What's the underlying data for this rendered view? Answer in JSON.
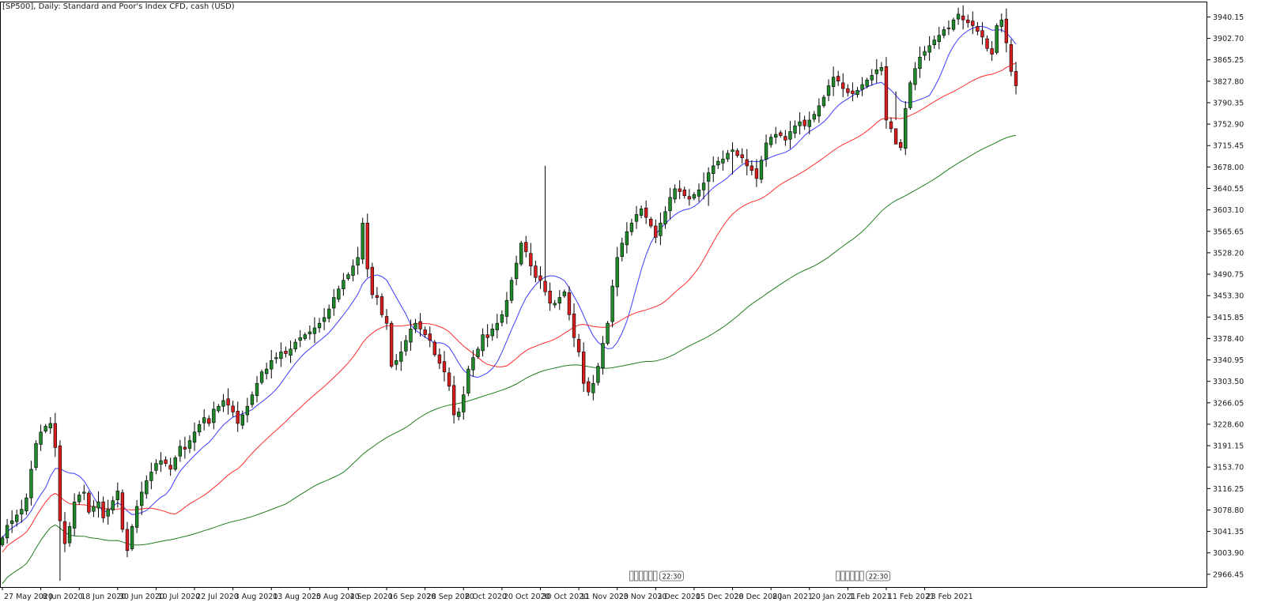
{
  "chart_data": {
    "type": "candlestick",
    "title": "[SP500], Daily:  Standard and Poor's Index CFD, cash (USD)",
    "y_ticks": [
      "3940.15",
      "3902.70",
      "3865.25",
      "3827.80",
      "3790.35",
      "3752.90",
      "3715.45",
      "3678.00",
      "3640.55",
      "3603.10",
      "3565.65",
      "3528.20",
      "3490.75",
      "3453.30",
      "3415.85",
      "3378.40",
      "3340.95",
      "3303.50",
      "3266.05",
      "3228.60",
      "3191.15",
      "3153.70",
      "3116.25",
      "3078.80",
      "3041.35",
      "3003.90",
      "2966.45"
    ],
    "y_tick_values": [
      3940.15,
      3902.7,
      3865.25,
      3827.8,
      3790.35,
      3752.9,
      3715.45,
      3678.0,
      3640.55,
      3603.1,
      3565.65,
      3528.2,
      3490.75,
      3453.3,
      3415.85,
      3378.4,
      3340.95,
      3303.5,
      3266.05,
      3228.6,
      3191.15,
      3153.7,
      3116.25,
      3078.8,
      3041.35,
      3003.9,
      2966.45
    ],
    "ylim": [
      2944.2,
      3967.0
    ],
    "x_ticks": [
      {
        "label": "27 May 2020",
        "index": 0
      },
      {
        "label": "8 Jun 2020",
        "index": 8
      },
      {
        "label": "18 Jun 2020",
        "index": 16
      },
      {
        "label": "30 Jun 2020",
        "index": 24
      },
      {
        "label": "10 Jul 2020",
        "index": 32
      },
      {
        "label": "22 Jul 2020",
        "index": 40
      },
      {
        "label": "3 Aug 2020",
        "index": 48
      },
      {
        "label": "13 Aug 2020",
        "index": 56
      },
      {
        "label": "25 Aug 2020",
        "index": 64
      },
      {
        "label": "4 Sep 2020",
        "index": 72
      },
      {
        "label": "16 Sep 2020",
        "index": 80
      },
      {
        "label": "28 Sep 2020",
        "index": 88
      },
      {
        "label": "8 Oct 2020",
        "index": 96
      },
      {
        "label": "20 Oct 2020",
        "index": 104
      },
      {
        "label": "30 Oct 2020",
        "index": 112
      },
      {
        "label": "11 Nov 2020",
        "index": 120
      },
      {
        "label": "23 Nov 2020",
        "index": 128
      },
      {
        "label": "3 Dec 2020",
        "index": 136
      },
      {
        "label": "15 Dec 2020",
        "index": 144
      },
      {
        "label": "28 Dec 2020",
        "index": 152
      },
      {
        "label": "8 Jan 2021",
        "index": 160
      },
      {
        "label": "20 Jan 2021",
        "index": 168
      },
      {
        "label": "1 Feb 2021",
        "index": 176
      },
      {
        "label": "11 Feb 2021",
        "index": 184
      },
      {
        "label": "23 Feb 2021",
        "index": 192
      }
    ],
    "event_markers": [
      {
        "index": 138,
        "label": "22:30"
      },
      {
        "index": 181,
        "label": "22:30"
      }
    ],
    "closes": [
      3030,
      3052,
      3060,
      3070,
      3080,
      3100,
      3150,
      3195,
      3215,
      3225,
      3230,
      3188,
      3060,
      3020,
      3050,
      3093,
      3105,
      3110,
      3075,
      3085,
      3093,
      3065,
      3080,
      3095,
      3112,
      3045,
      3008,
      3050,
      3085,
      3110,
      3130,
      3145,
      3160,
      3165,
      3160,
      3150,
      3170,
      3190,
      3185,
      3200,
      3215,
      3228,
      3240,
      3230,
      3255,
      3260,
      3270,
      3262,
      3250,
      3230,
      3245,
      3260,
      3280,
      3300,
      3320,
      3325,
      3340,
      3345,
      3355,
      3352,
      3360,
      3372,
      3380,
      3385,
      3390,
      3397,
      3405,
      3415,
      3430,
      3450,
      3465,
      3480,
      3490,
      3505,
      3520,
      3580,
      3500,
      3455,
      3450,
      3420,
      3405,
      3330,
      3340,
      3355,
      3375,
      3395,
      3405,
      3395,
      3385,
      3375,
      3350,
      3335,
      3320,
      3295,
      3245,
      3250,
      3280,
      3325,
      3345,
      3360,
      3385,
      3380,
      3395,
      3405,
      3420,
      3445,
      3480,
      3510,
      3545,
      3530,
      3505,
      3485,
      3480,
      3460,
      3440,
      3440,
      3450,
      3460,
      3420,
      3380,
      3355,
      3300,
      3285,
      3300,
      3330,
      3370,
      3405,
      3470,
      3520,
      3545,
      3565,
      3580,
      3595,
      3605,
      3590,
      3575,
      3555,
      3580,
      3600,
      3625,
      3640,
      3635,
      3628,
      3622,
      3630,
      3638,
      3650,
      3668,
      3680,
      3688,
      3692,
      3702,
      3708,
      3698,
      3694,
      3680,
      3672,
      3658,
      3690,
      3720,
      3730,
      3735,
      3733,
      3725,
      3740,
      3750,
      3757,
      3750,
      3760,
      3770,
      3785,
      3800,
      3820,
      3835,
      3828,
      3815,
      3808,
      3806,
      3812,
      3822,
      3830,
      3838,
      3848,
      3852,
      3760,
      3745,
      3718,
      3712,
      3780,
      3825,
      3850,
      3870,
      3880,
      3890,
      3900,
      3908,
      3918,
      3920,
      3935,
      3945,
      3935,
      3930,
      3925,
      3915,
      3905,
      3885,
      3875,
      3925,
      3935,
      3895,
      3845,
      3820
    ]
  }
}
